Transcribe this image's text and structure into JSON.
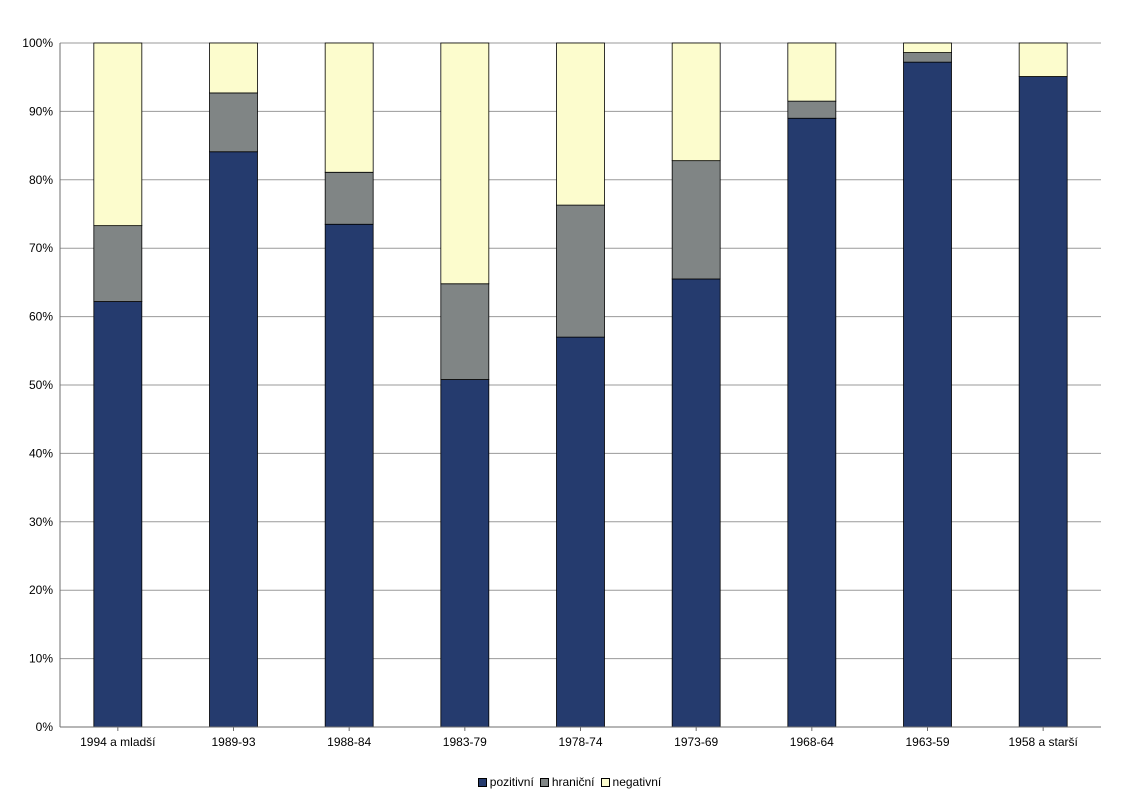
{
  "chart_data": {
    "type": "bar",
    "stacked": true,
    "percent": true,
    "categories": [
      "1994 a mladší",
      "1989-93",
      "1988-84",
      "1983-79",
      "1978-74",
      "1973-69",
      "1968-64",
      "1963-59",
      "1958 a starší"
    ],
    "series": [
      {
        "name": "pozitivní",
        "color": "#253b6e",
        "values": [
          62.2,
          84.1,
          73.5,
          50.8,
          57.0,
          65.5,
          89.0,
          97.2,
          95.1
        ]
      },
      {
        "name": "hraniční",
        "color": "#808585",
        "values": [
          11.1,
          8.6,
          7.6,
          14.0,
          19.3,
          17.3,
          2.5,
          1.4,
          0
        ]
      },
      {
        "name": "negativní",
        "color": "#fcfccd",
        "values": [
          26.7,
          7.3,
          18.9,
          35.2,
          23.7,
          17.2,
          8.5,
          1.4,
          4.9
        ]
      }
    ],
    "ylim": [
      0,
      100
    ],
    "yticks": [
      "0%",
      "10%",
      "20%",
      "30%",
      "40%",
      "50%",
      "60%",
      "70%",
      "80%",
      "90%",
      "100%"
    ],
    "title": "",
    "xlabel": "",
    "ylabel": "",
    "grid": true,
    "legend_position": "bottom"
  }
}
